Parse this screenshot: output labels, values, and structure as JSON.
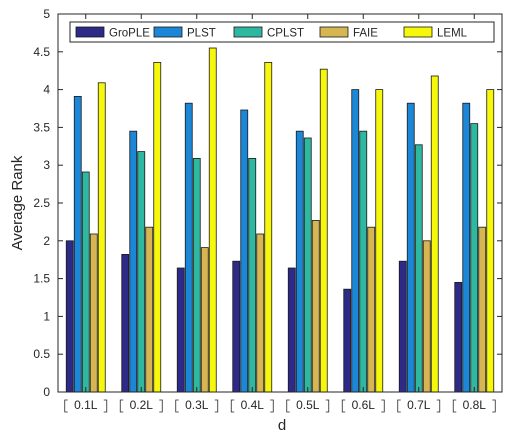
{
  "chart_data": {
    "type": "bar",
    "title": "",
    "xlabel": "d",
    "ylabel": "Average Rank",
    "ylim": [
      0,
      5
    ],
    "yticks": [
      0,
      0.5,
      1,
      1.5,
      2,
      2.5,
      3,
      3.5,
      4,
      4.5,
      5
    ],
    "ytick_labels": [
      "0",
      "0.5",
      "1",
      "1.5",
      "2",
      "2.5",
      "3",
      "3.5",
      "4",
      "4.5",
      "5"
    ],
    "categories": [
      "0.1L",
      "0.2L",
      "0.3L",
      "0.4L",
      "0.5L",
      "0.6L",
      "0.7L",
      "0.8L"
    ],
    "legend_position": "top",
    "grid": false,
    "series": [
      {
        "name": "GroPLE",
        "color": "#2e2a87",
        "values": [
          2.0,
          1.82,
          1.64,
          1.73,
          1.64,
          1.36,
          1.73,
          1.45
        ]
      },
      {
        "name": "PLST",
        "color": "#1b87d6",
        "values": [
          3.91,
          3.45,
          3.82,
          3.73,
          3.45,
          4.0,
          3.82,
          3.82
        ]
      },
      {
        "name": "CPLST",
        "color": "#2db89f",
        "values": [
          2.91,
          3.18,
          3.09,
          3.09,
          3.36,
          3.45,
          3.27,
          3.55
        ]
      },
      {
        "name": "FAIE",
        "color": "#d6b552",
        "values": [
          2.09,
          2.18,
          1.91,
          2.09,
          2.27,
          2.18,
          2.0,
          2.18
        ]
      },
      {
        "name": "LEML",
        "color": "#f7f70c",
        "values": [
          4.09,
          4.36,
          4.55,
          4.36,
          4.27,
          4.0,
          4.18,
          4.0
        ]
      }
    ]
  }
}
